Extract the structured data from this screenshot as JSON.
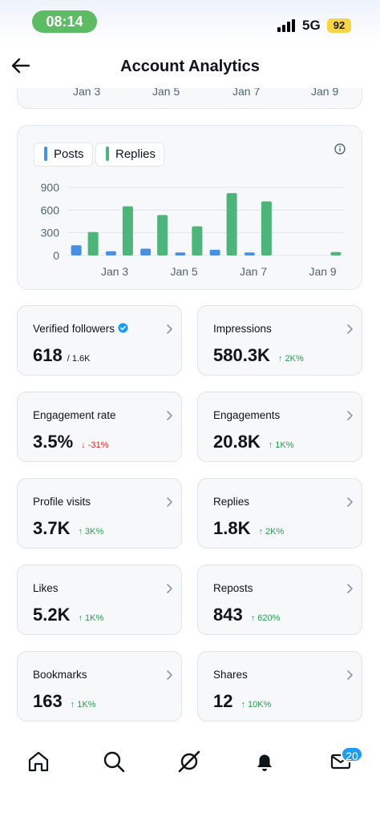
{
  "status_bar": {
    "time": "08:14",
    "network": "5G",
    "battery": "92",
    "icons": [
      "signal-bars-icon"
    ]
  },
  "header": {
    "title": "Account Analytics",
    "back_icon": "back-arrow-icon"
  },
  "previous_chart_axis": [
    "Jan 3",
    "Jan 5",
    "Jan 7",
    "Jan 9"
  ],
  "chart": {
    "legend": {
      "posts": "Posts",
      "replies": "Replies"
    },
    "info_icon": "info-icon",
    "colors": {
      "posts": "#4a90e2",
      "replies": "#4db57a"
    }
  },
  "chart_data": {
    "type": "bar",
    "categories": [
      "Jan 2",
      "Jan 3",
      "Jan 4",
      "Jan 5",
      "Jan 6",
      "Jan 7",
      "Jan 8",
      "Jan 9"
    ],
    "x_tick_labels": [
      "Jan 3",
      "Jan 5",
      "Jan 7",
      "Jan 9"
    ],
    "series": [
      {
        "name": "Posts",
        "values": [
          135,
          55,
          90,
          40,
          75,
          40,
          0,
          0
        ]
      },
      {
        "name": "Replies",
        "values": [
          310,
          650,
          535,
          385,
          825,
          715,
          0,
          45
        ]
      }
    ],
    "y_ticks": [
      "900",
      "600",
      "300",
      "0"
    ],
    "ylim": [
      0,
      900
    ],
    "grid": true,
    "legend_position": "top-left"
  },
  "stats": [
    {
      "label": "Verified followers",
      "value": "618",
      "sub": "/ 1.6K",
      "delta": "",
      "direction": "none",
      "verified": true
    },
    {
      "label": "Impressions",
      "value": "580.3K",
      "sub": "",
      "delta": "↑ 2K%",
      "direction": "up",
      "verified": false
    },
    {
      "label": "Engagement rate",
      "value": "3.5%",
      "sub": "",
      "delta": "↓ -31%",
      "direction": "down",
      "verified": false
    },
    {
      "label": "Engagements",
      "value": "20.8K",
      "sub": "",
      "delta": "↑ 1K%",
      "direction": "up",
      "verified": false
    },
    {
      "label": "Profile visits",
      "value": "3.7K",
      "sub": "",
      "delta": "↑ 3K%",
      "direction": "up",
      "verified": false
    },
    {
      "label": "Replies",
      "value": "1.8K",
      "sub": "",
      "delta": "↑ 2K%",
      "direction": "up",
      "verified": false
    },
    {
      "label": "Likes",
      "value": "5.2K",
      "sub": "",
      "delta": "↑ 1K%",
      "direction": "up",
      "verified": false
    },
    {
      "label": "Reposts",
      "value": "843",
      "sub": "",
      "delta": "↑ 620%",
      "direction": "up",
      "verified": false
    },
    {
      "label": "Bookmarks",
      "value": "163",
      "sub": "",
      "delta": "↑ 1K%",
      "direction": "up",
      "verified": false
    },
    {
      "label": "Shares",
      "value": "12",
      "sub": "",
      "delta": "↑ 10K%",
      "direction": "up",
      "verified": false
    }
  ],
  "bottom_nav": {
    "items": [
      "home-icon",
      "search-icon",
      "grok-icon",
      "notifications-icon",
      "messages-icon"
    ],
    "messages_badge": "20"
  }
}
